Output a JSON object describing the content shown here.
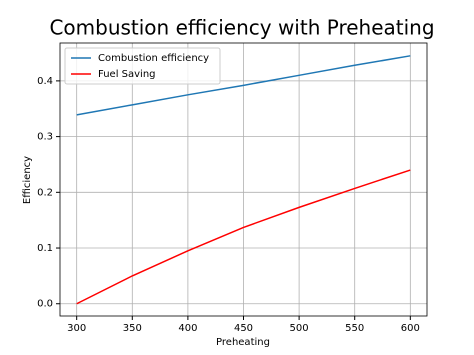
{
  "chart_data": {
    "type": "line",
    "title": "Combustion efficiency with Preheating",
    "xlabel": "Preheating",
    "ylabel": "Efficiency",
    "x": [
      300,
      350,
      400,
      450,
      500,
      550,
      600
    ],
    "series": [
      {
        "name": "Combustion efficiency",
        "color": "#1f77b4",
        "values": [
          0.339,
          0.357,
          0.375,
          0.392,
          0.41,
          0.428,
          0.445
        ]
      },
      {
        "name": "Fuel Saving",
        "color": "#ff0000",
        "values": [
          0,
          0.05,
          0.095,
          0.137,
          0.173,
          0.207,
          0.24
        ]
      }
    ],
    "xlim": [
      285,
      615
    ],
    "xticks": [
      300,
      350,
      400,
      450,
      500,
      550,
      600
    ],
    "ylim": [
      -0.022,
      0.468
    ],
    "yticks": [
      {
        "value": 0,
        "label": "0.0"
      },
      0.1,
      0.2,
      0.3,
      0.4
    ],
    "grid": true,
    "legend": "upper-left"
  }
}
